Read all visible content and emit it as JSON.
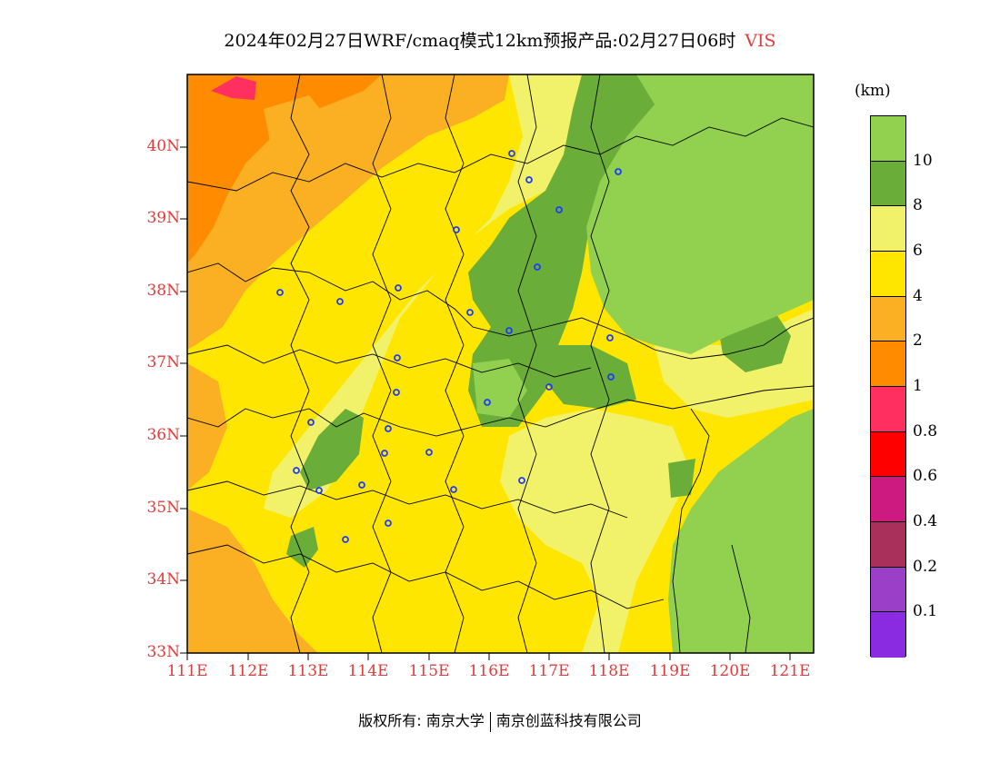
{
  "title": "2024年02月27日WRF/cmaq模式12km预报产品:02月27日06时",
  "variable": "VIS",
  "unit": "(km)",
  "lat_labels": [
    "40N",
    "39N",
    "38N",
    "37N",
    "36N",
    "35N",
    "34N",
    "33N"
  ],
  "lon_labels": [
    "111E",
    "112E",
    "113E",
    "114E",
    "115E",
    "116E",
    "117E",
    "118E",
    "119E",
    "120E",
    "121E"
  ],
  "colorbar": {
    "levels": [
      "10",
      "8",
      "6",
      "4",
      "2",
      "1",
      "0.8",
      "0.6",
      "0.4",
      "0.2",
      "0.1"
    ],
    "colors": [
      "#92d050",
      "#6aad38",
      "#f2f26a",
      "#ffe600",
      "#fbb024",
      "#ff8c00",
      "#ff3060",
      "#ff0000",
      "#cc1a80",
      "#a8305a",
      "#9a40c8",
      "#8a2be2"
    ]
  },
  "palette": {
    "vis_over_10": "#92d050",
    "vis_8_10": "#6aad38",
    "vis_6_8": "#f2f26a",
    "vis_4_6": "#ffe600",
    "vis_2_4": "#fbb024",
    "vis_1_2": "#ff8c00",
    "vis_08_1": "#ff3060",
    "label_red": "#e03c3c",
    "station_blue": "#1e3cff"
  },
  "footer": {
    "copyright": "版权所有: 南京大学",
    "company": "南京创蓝科技有限公司"
  }
}
